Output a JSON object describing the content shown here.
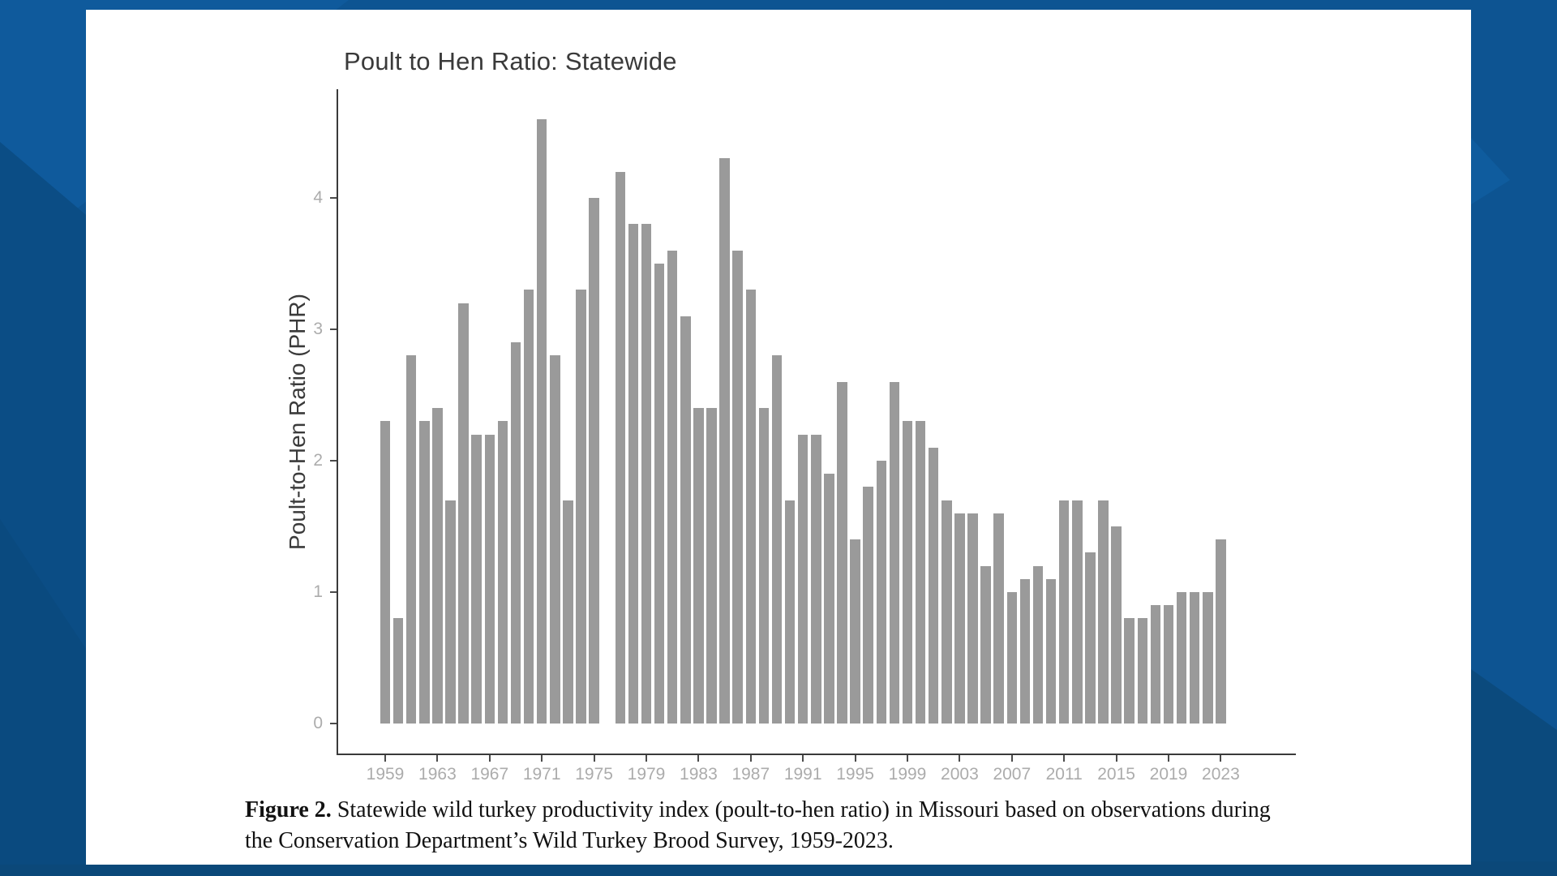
{
  "page": {
    "background": {
      "base": "#0d5492",
      "facet_dark": "#0b4d85",
      "facet_darker": "#0a4a7f",
      "facet_right_dark": "#0b4a7d",
      "facet_light": "#0f5c9e",
      "bottom_strip": "#0b4879"
    },
    "card_color": "#ffffff"
  },
  "chart": {
    "title": "Poult to Hen Ratio: Statewide",
    "y_axis_label": "Poult-to-Hen Ratio (PHR)",
    "bar_color": "#9a9a9a",
    "axis_line_color": "#3a3a3a",
    "tick_text_color": "#acacac",
    "title_color": "#3a3a3a",
    "y_ticks": [
      0,
      1,
      2,
      3,
      4
    ],
    "x_tick_years": [
      1959,
      1963,
      1967,
      1971,
      1975,
      1979,
      1983,
      1987,
      1991,
      1995,
      1999,
      2003,
      2007,
      2011,
      2015,
      2019,
      2023
    ]
  },
  "chart_data": {
    "type": "bar",
    "title": "Poult to Hen Ratio: Statewide",
    "xlabel": "",
    "ylabel": "Poult-to-Hen Ratio (PHR)",
    "x": [
      1959,
      1960,
      1961,
      1962,
      1963,
      1964,
      1965,
      1966,
      1967,
      1968,
      1969,
      1970,
      1971,
      1972,
      1973,
      1974,
      1975,
      1976,
      1977,
      1978,
      1979,
      1980,
      1981,
      1982,
      1983,
      1984,
      1985,
      1986,
      1987,
      1988,
      1989,
      1990,
      1991,
      1992,
      1993,
      1994,
      1995,
      1996,
      1997,
      1998,
      1999,
      2000,
      2001,
      2002,
      2003,
      2004,
      2005,
      2006,
      2007,
      2008,
      2009,
      2010,
      2011,
      2012,
      2013,
      2014,
      2015,
      2016,
      2017,
      2018,
      2019,
      2020,
      2021,
      2022,
      2023
    ],
    "values": [
      2.3,
      0.8,
      2.8,
      2.3,
      2.4,
      1.7,
      3.2,
      2.2,
      2.2,
      2.3,
      2.9,
      3.3,
      4.6,
      2.8,
      1.7,
      3.3,
      4.0,
      null,
      4.2,
      3.8,
      3.8,
      3.5,
      3.6,
      3.1,
      2.4,
      2.4,
      4.3,
      3.6,
      3.3,
      2.4,
      2.8,
      1.7,
      2.2,
      2.2,
      1.9,
      2.6,
      1.4,
      1.8,
      2.0,
      2.6,
      2.3,
      2.3,
      2.1,
      1.7,
      1.6,
      1.6,
      1.2,
      1.6,
      1.0,
      1.1,
      1.2,
      1.1,
      1.7,
      1.7,
      1.3,
      1.7,
      1.5,
      0.8,
      0.8,
      0.9,
      0.9,
      1.0,
      1.0,
      1.0,
      1.4
    ],
    "missing_years": [
      1976
    ],
    "ylim": [
      0,
      4.6
    ],
    "yticks": [
      0,
      1,
      2,
      3,
      4
    ],
    "xticks": [
      1959,
      1963,
      1967,
      1971,
      1975,
      1979,
      1983,
      1987,
      1991,
      1995,
      1999,
      2003,
      2007,
      2011,
      2015,
      2019,
      2023
    ],
    "grid": "off",
    "legend": "none"
  },
  "caption": {
    "label": "Figure 2.",
    "text": " Statewide wild turkey productivity index (poult-to-hen ratio) in Missouri based on observations during the Conservation Department’s Wild Turkey Brood Survey, 1959-2023."
  }
}
